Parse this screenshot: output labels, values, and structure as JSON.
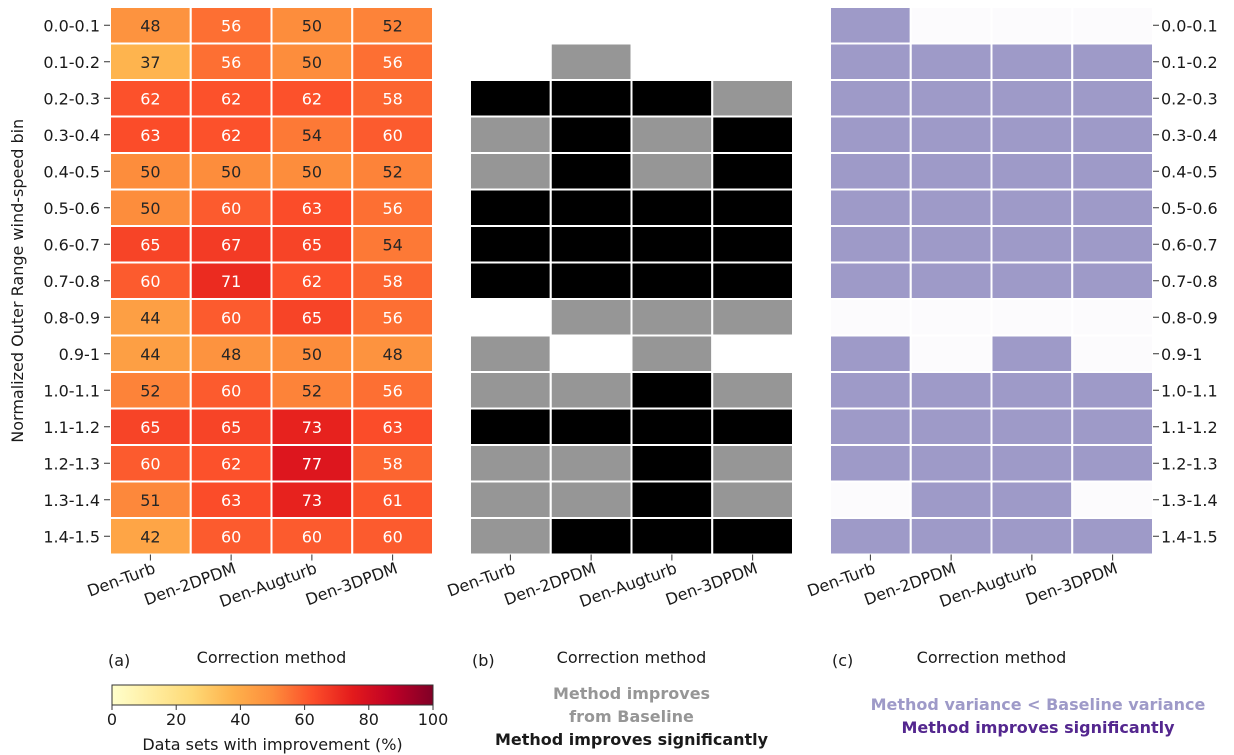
{
  "chart_data": [
    {
      "type": "heatmap",
      "panel_label": "(a)",
      "xlabel": "Correction method",
      "ylabel": "Normalized Outer Range wind-speed bin",
      "categories": [
        "Den-Turb",
        "Den-2DPDM",
        "Den-Augturb",
        "Den-3DPDM"
      ],
      "rows": [
        "0.0-0.1",
        "0.1-0.2",
        "0.2-0.3",
        "0.3-0.4",
        "0.4-0.5",
        "0.5-0.6",
        "0.6-0.7",
        "0.7-0.8",
        "0.8-0.9",
        "0.9-1",
        "1.0-1.1",
        "1.1-1.2",
        "1.2-1.3",
        "1.3-1.4",
        "1.4-1.5"
      ],
      "values": [
        [
          48,
          56,
          50,
          52
        ],
        [
          37,
          56,
          50,
          56
        ],
        [
          62,
          62,
          62,
          58
        ],
        [
          63,
          62,
          54,
          60
        ],
        [
          50,
          50,
          50,
          52
        ],
        [
          50,
          60,
          63,
          56
        ],
        [
          65,
          67,
          65,
          54
        ],
        [
          60,
          71,
          62,
          58
        ],
        [
          44,
          60,
          65,
          56
        ],
        [
          44,
          48,
          50,
          48
        ],
        [
          52,
          60,
          52,
          56
        ],
        [
          65,
          65,
          73,
          63
        ],
        [
          60,
          62,
          77,
          58
        ],
        [
          51,
          63,
          73,
          61
        ],
        [
          42,
          60,
          60,
          60
        ]
      ],
      "colorbar": {
        "label": "Data sets with improvement (%)",
        "colormap": "YlOrRd",
        "range": [
          0,
          100
        ],
        "ticks": [
          0,
          20,
          40,
          60,
          80,
          100
        ]
      }
    },
    {
      "type": "heatmap",
      "panel_label": "(b)",
      "xlabel": "Correction method",
      "categories": [
        "Den-Turb",
        "Den-2DPDM",
        "Den-Augturb",
        "Den-3DPDM"
      ],
      "rows": [
        "0.0-0.1",
        "0.1-0.2",
        "0.2-0.3",
        "0.3-0.4",
        "0.4-0.5",
        "0.5-0.6",
        "0.6-0.7",
        "0.7-0.8",
        "0.8-0.9",
        "0.9-1",
        "1.0-1.1",
        "1.1-1.2",
        "1.2-1.3",
        "1.3-1.4",
        "1.4-1.5"
      ],
      "state_codes": {
        "0": "none",
        "1": "Method improves from Baseline",
        "2": "Method improves significantly"
      },
      "values": [
        [
          0,
          0,
          0,
          0
        ],
        [
          0,
          1,
          0,
          0
        ],
        [
          2,
          2,
          2,
          1
        ],
        [
          1,
          2,
          1,
          2
        ],
        [
          1,
          2,
          1,
          2
        ],
        [
          2,
          2,
          2,
          2
        ],
        [
          2,
          2,
          2,
          2
        ],
        [
          2,
          2,
          2,
          2
        ],
        [
          0,
          1,
          1,
          1
        ],
        [
          1,
          0,
          1,
          0
        ],
        [
          1,
          1,
          2,
          1
        ],
        [
          2,
          2,
          2,
          2
        ],
        [
          1,
          1,
          2,
          1
        ],
        [
          1,
          1,
          2,
          1
        ],
        [
          1,
          2,
          2,
          2
        ]
      ],
      "colors": {
        "0": "#ffffff",
        "1": "#969696",
        "2": "#000000"
      },
      "legend": {
        "line1": "Method improves",
        "line2": "from Baseline",
        "line3": "Method improves significantly",
        "color1": "#969696",
        "color2": "#1a1a1a"
      }
    },
    {
      "type": "heatmap",
      "panel_label": "(c)",
      "xlabel": "Correction method",
      "categories": [
        "Den-Turb",
        "Den-2DPDM",
        "Den-Augturb",
        "Den-3DPDM"
      ],
      "rows": [
        "0.0-0.1",
        "0.1-0.2",
        "0.2-0.3",
        "0.3-0.4",
        "0.4-0.5",
        "0.5-0.6",
        "0.6-0.7",
        "0.7-0.8",
        "0.8-0.9",
        "0.9-1",
        "1.0-1.1",
        "1.1-1.2",
        "1.2-1.3",
        "1.3-1.4",
        "1.4-1.5"
      ],
      "state_codes": {
        "0": "none",
        "1": "Method variance < Baseline variance"
      },
      "values": [
        [
          1,
          0,
          0,
          0
        ],
        [
          1,
          1,
          1,
          1
        ],
        [
          1,
          1,
          1,
          1
        ],
        [
          1,
          1,
          1,
          1
        ],
        [
          1,
          1,
          1,
          1
        ],
        [
          1,
          1,
          1,
          1
        ],
        [
          1,
          1,
          1,
          1
        ],
        [
          1,
          1,
          1,
          1
        ],
        [
          0,
          0,
          0,
          0
        ],
        [
          1,
          0,
          1,
          0
        ],
        [
          1,
          1,
          1,
          1
        ],
        [
          1,
          1,
          1,
          1
        ],
        [
          1,
          1,
          1,
          1
        ],
        [
          0,
          1,
          1,
          0
        ],
        [
          1,
          1,
          1,
          1
        ]
      ],
      "colors": {
        "0": "#fcfbfd",
        "1": "#9e9ac8"
      },
      "legend": {
        "line1": "Method variance < Baseline variance",
        "line2": "Method improves significantly",
        "color1": "#9e9ac8",
        "color2": "#54278f"
      }
    }
  ]
}
